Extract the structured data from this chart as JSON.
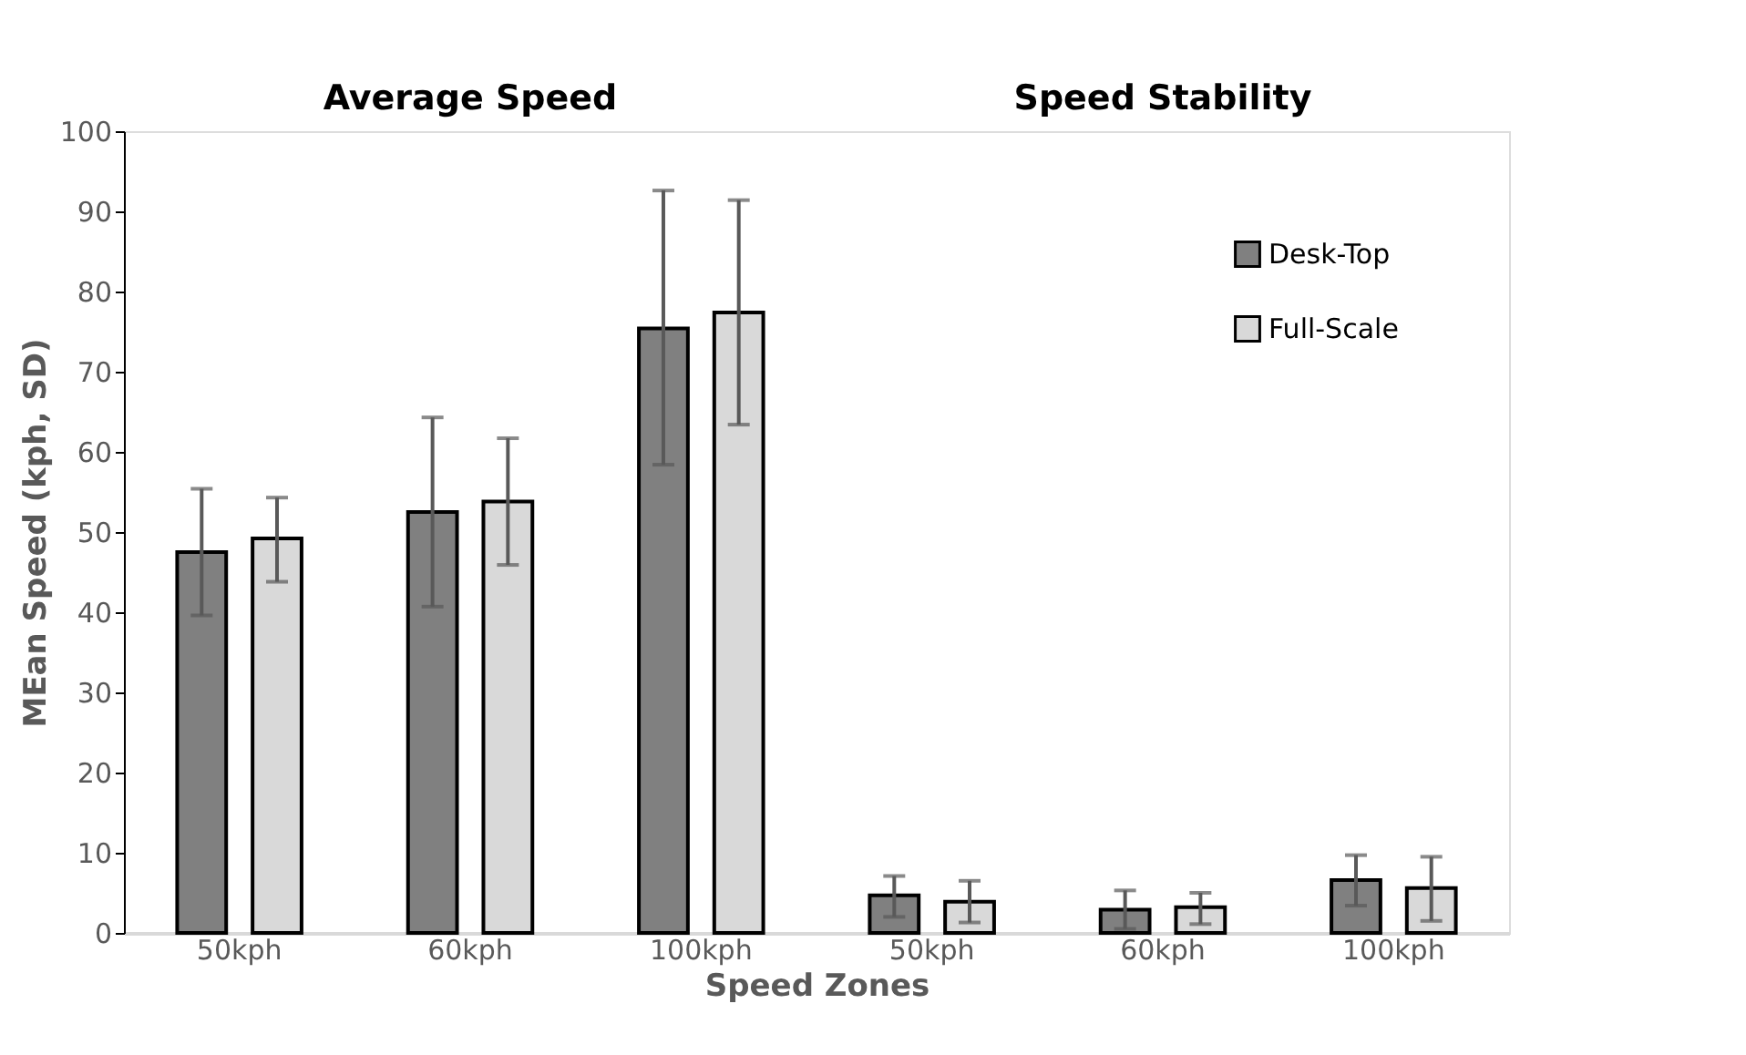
{
  "chart_data": {
    "type": "bar",
    "xlabel": "Speed Zones",
    "ylabel": "MEan Speed (kph, SD)",
    "categories": [
      "50kph",
      "60kph",
      "100kph",
      "50kph",
      "60kph",
      "100kph"
    ],
    "series": [
      {
        "name": "Desk-Top",
        "color": "#808080",
        "values": [
          47.5,
          52.5,
          75.4,
          4.7,
          2.9,
          6.6
        ],
        "errors": [
          [
            39.6,
            55.4
          ],
          [
            40.7,
            64.3
          ],
          [
            58.4,
            92.6
          ],
          [
            2.0,
            7.1
          ],
          [
            0.5,
            5.3
          ],
          [
            3.4,
            9.7
          ]
        ]
      },
      {
        "name": "Full-Scale",
        "color": "#d9d9d9",
        "values": [
          49.2,
          53.8,
          77.4,
          3.9,
          3.2,
          5.6
        ],
        "errors": [
          [
            43.8,
            54.3
          ],
          [
            45.9,
            61.7
          ],
          [
            63.4,
            91.4
          ],
          [
            1.3,
            6.5
          ],
          [
            1.1,
            5.0
          ],
          [
            1.5,
            9.5
          ]
        ]
      }
    ],
    "annotations": [
      "Average Speed",
      "Speed Stability"
    ],
    "ylim": [
      0,
      100
    ],
    "yticks": [
      0,
      10,
      20,
      30,
      40,
      50,
      60,
      70,
      80,
      90,
      100
    ],
    "grid": false,
    "legend": "top right"
  }
}
